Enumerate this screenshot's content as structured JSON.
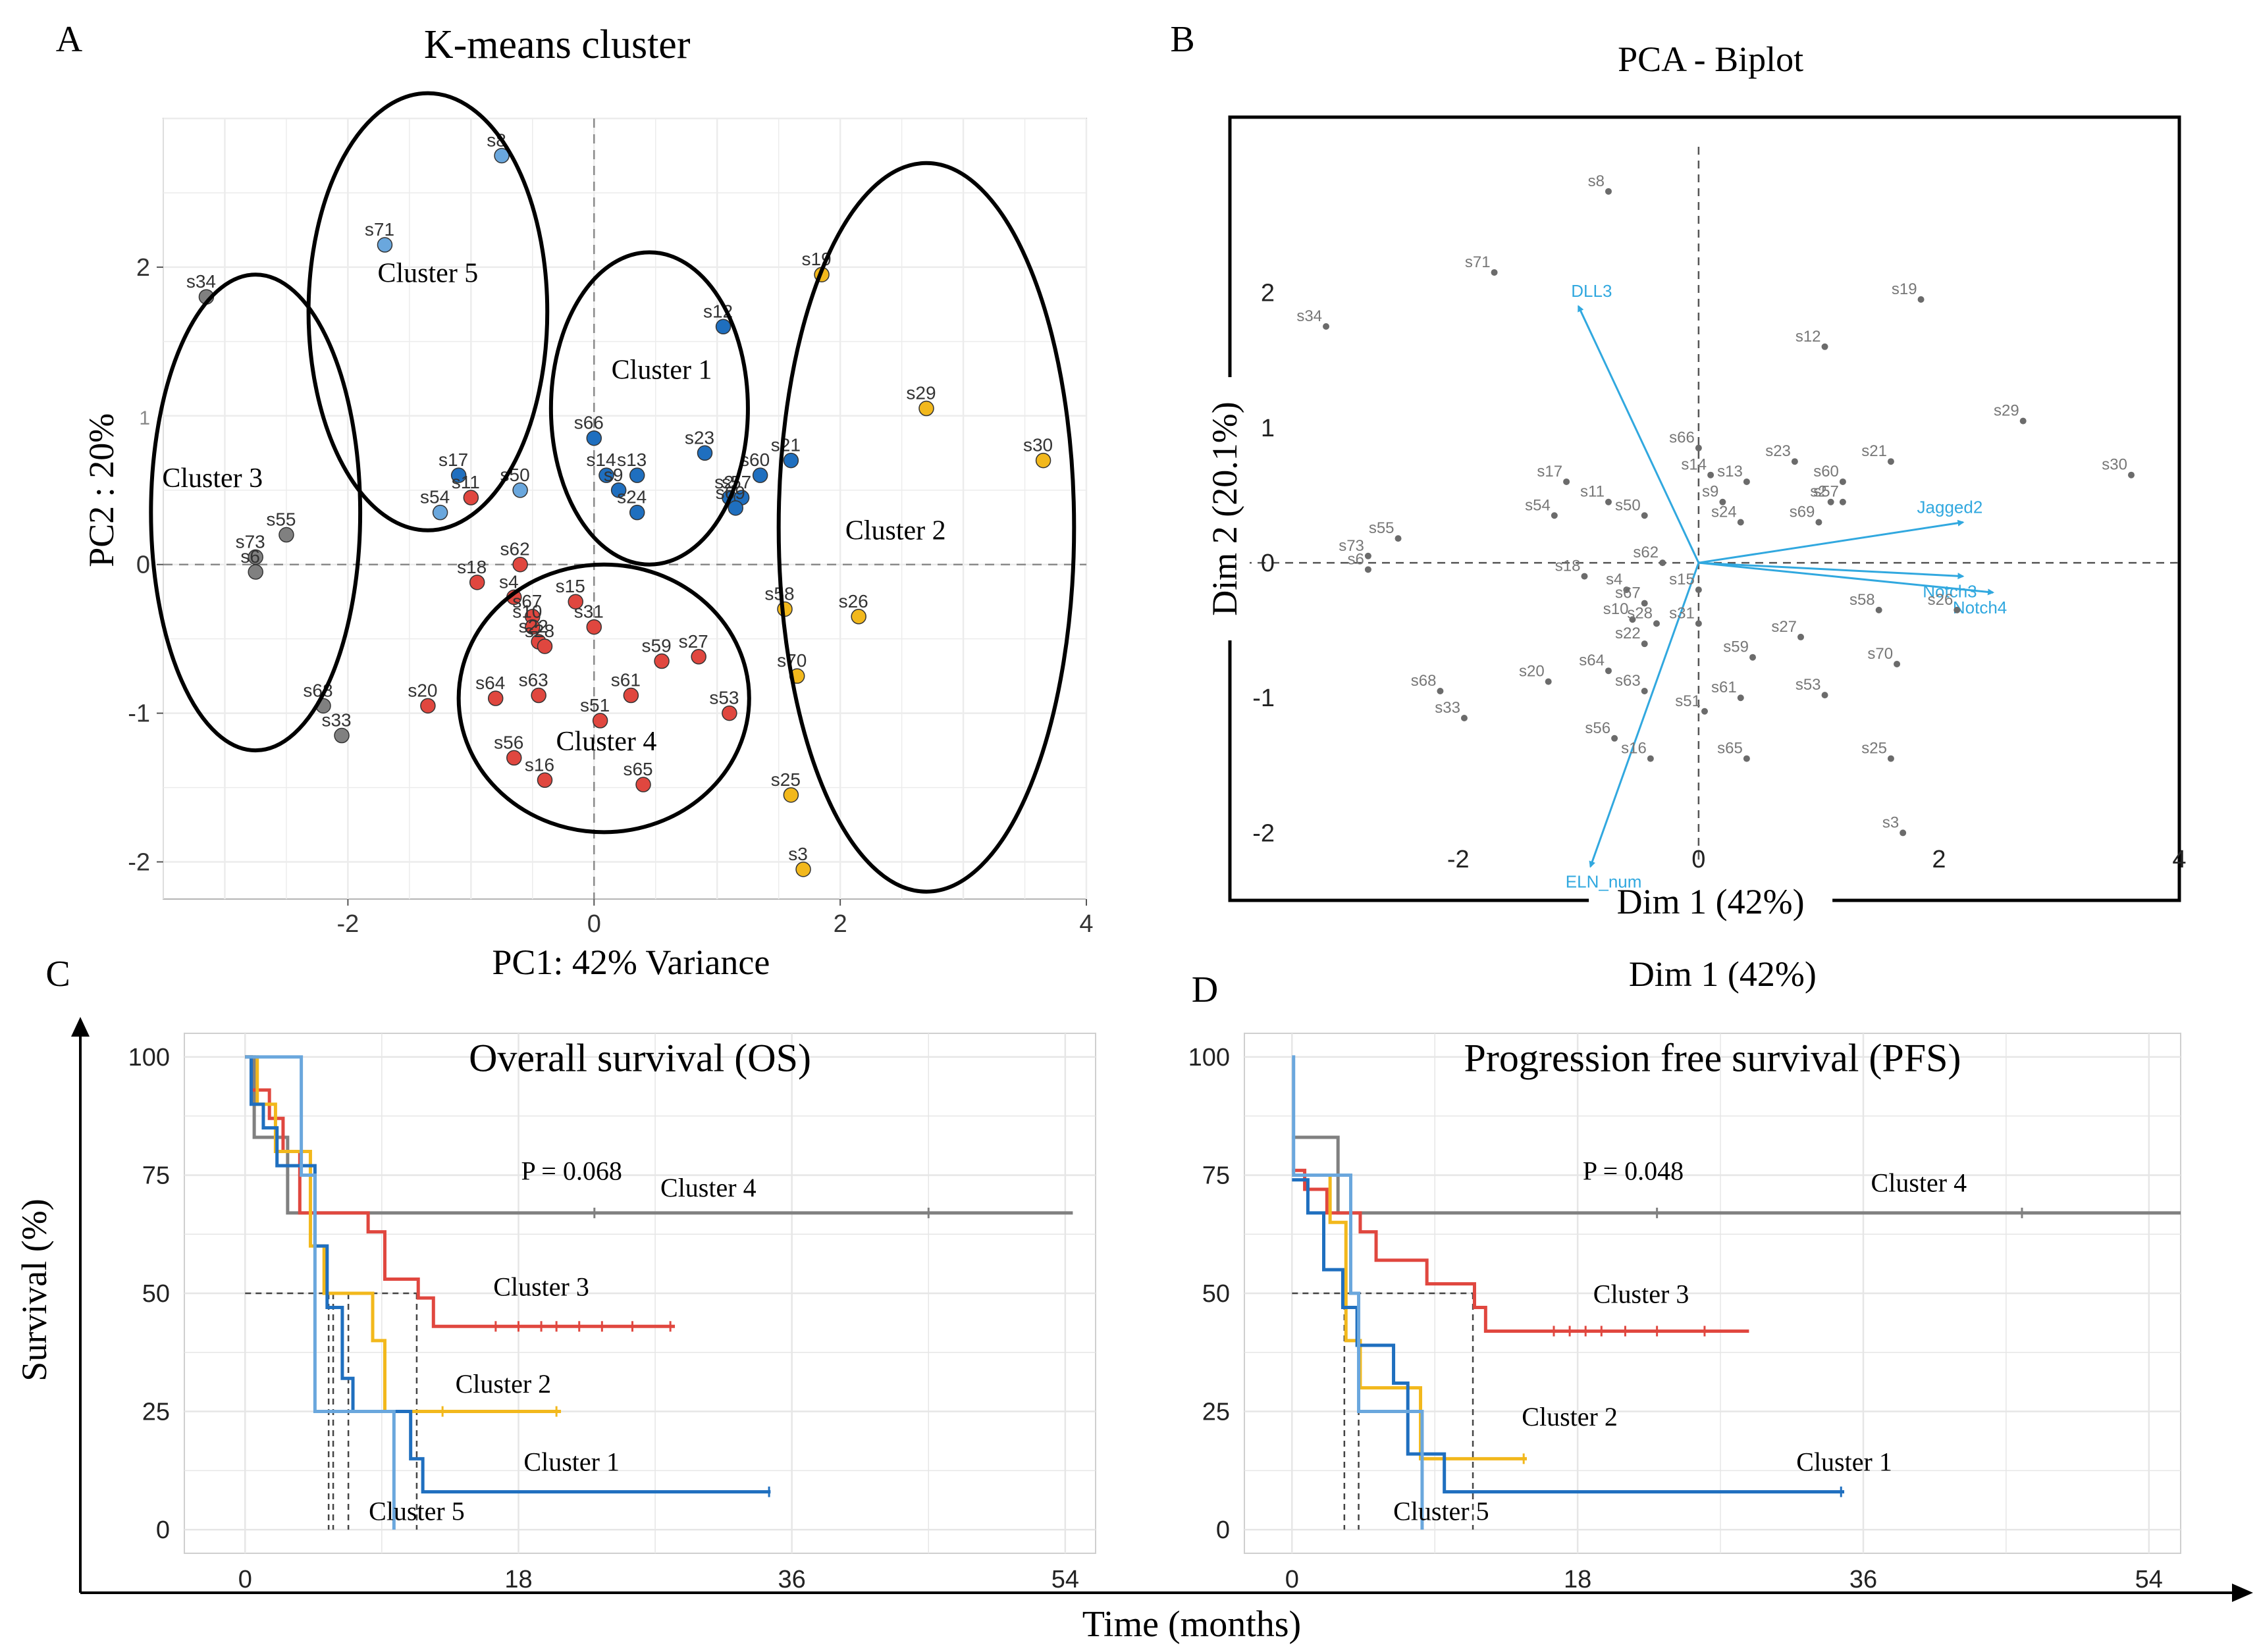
{
  "panels": {
    "a": "A",
    "b": "B",
    "c": "C",
    "d": "D"
  },
  "colors": {
    "cluster1": "#1f6fbf",
    "cluster2": "#f2b81c",
    "cluster3": "#e0473f",
    "cluster4": "#808080",
    "cluster5": "#6aa7dd",
    "arrow": "#31a8df",
    "biplot_point": "#6b6b6b"
  },
  "chart_data": [
    {
      "id": "kmeans",
      "type": "scatter",
      "title": "K-means cluster",
      "xlabel": "PC1: 42% Variance",
      "ylabel": "PC2 : 20%",
      "xlim": [
        -3.5,
        4
      ],
      "ylim": [
        -2.25,
        3.0
      ],
      "xticks": [
        -2,
        0,
        2,
        4
      ],
      "yticks": [
        -2,
        -1,
        0,
        2
      ],
      "ytick_extra": "1",
      "grid": true,
      "cluster_labels": [
        {
          "text": "Cluster 1",
          "x": 0.55,
          "y": 1.25
        },
        {
          "text": "Cluster 2",
          "x": 2.45,
          "y": 0.17
        },
        {
          "text": "Cluster 3",
          "x": -3.1,
          "y": 0.52
        },
        {
          "text": "Cluster 4",
          "x": 0.1,
          "y": -1.25
        },
        {
          "text": "Cluster 5",
          "x": -1.35,
          "y": 1.9
        }
      ],
      "ellipses": [
        {
          "cx": 0.45,
          "cy": 1.05,
          "rx": 0.8,
          "ry": 1.05
        },
        {
          "cx": 2.7,
          "cy": 0.25,
          "rx": 1.2,
          "ry": 2.45
        },
        {
          "cx": -2.75,
          "cy": 0.35,
          "rx": 0.85,
          "ry": 1.6
        },
        {
          "cx": 0.08,
          "cy": -0.9,
          "rx": 1.18,
          "ry": 0.9
        },
        {
          "cx": -1.35,
          "cy": 1.7,
          "rx": 0.97,
          "ry": 1.47
        }
      ],
      "points": [
        {
          "label": "s8",
          "x": -0.75,
          "y": 2.75,
          "cluster": 5
        },
        {
          "label": "s71",
          "x": -1.7,
          "y": 2.15,
          "cluster": 5
        },
        {
          "label": "s50",
          "x": -0.6,
          "y": 0.5,
          "cluster": 5
        },
        {
          "label": "s54",
          "x": -1.25,
          "y": 0.35,
          "cluster": 5
        },
        {
          "label": "s12",
          "x": 1.05,
          "y": 1.6,
          "cluster": 1
        },
        {
          "label": "s66",
          "x": 0.0,
          "y": 0.85,
          "cluster": 1
        },
        {
          "label": "s23",
          "x": 0.9,
          "y": 0.75,
          "cluster": 1
        },
        {
          "label": "s13",
          "x": 0.35,
          "y": 0.6,
          "cluster": 1
        },
        {
          "label": "s14",
          "x": 0.1,
          "y": 0.6,
          "cluster": 1
        },
        {
          "label": "s60",
          "x": 1.35,
          "y": 0.6,
          "cluster": 1
        },
        {
          "label": "s21",
          "x": 1.6,
          "y": 0.7,
          "cluster": 1
        },
        {
          "label": "s17",
          "x": -1.1,
          "y": 0.6,
          "cluster": 1
        },
        {
          "label": "s9",
          "x": 0.2,
          "y": 0.5,
          "cluster": 1
        },
        {
          "label": "s2",
          "x": 1.1,
          "y": 0.45,
          "cluster": 1
        },
        {
          "label": "s57",
          "x": 1.2,
          "y": 0.45,
          "cluster": 1
        },
        {
          "label": "s24",
          "x": 0.35,
          "y": 0.35,
          "cluster": 1
        },
        {
          "label": "s69",
          "x": 1.15,
          "y": 0.38,
          "cluster": 1
        },
        {
          "label": "s19",
          "x": 1.85,
          "y": 1.95,
          "cluster": 2
        },
        {
          "label": "s29",
          "x": 2.7,
          "y": 1.05,
          "cluster": 2
        },
        {
          "label": "s30",
          "x": 3.65,
          "y": 0.7,
          "cluster": 2
        },
        {
          "label": "s58",
          "x": 1.55,
          "y": -0.3,
          "cluster": 2
        },
        {
          "label": "s26",
          "x": 2.15,
          "y": -0.35,
          "cluster": 2
        },
        {
          "label": "s70",
          "x": 1.65,
          "y": -0.75,
          "cluster": 2
        },
        {
          "label": "s25",
          "x": 1.6,
          "y": -1.55,
          "cluster": 2
        },
        {
          "label": "s3",
          "x": 1.7,
          "y": -2.05,
          "cluster": 2
        },
        {
          "label": "s34",
          "x": -3.15,
          "y": 1.8,
          "cluster": 4
        },
        {
          "label": "s55",
          "x": -2.5,
          "y": 0.2,
          "cluster": 4
        },
        {
          "label": "s73",
          "x": -2.75,
          "y": 0.05,
          "cluster": 4
        },
        {
          "label": "s6",
          "x": -2.75,
          "y": -0.05,
          "cluster": 4
        },
        {
          "label": "s68",
          "x": -2.2,
          "y": -0.95,
          "cluster": 4
        },
        {
          "label": "s33",
          "x": -2.05,
          "y": -1.15,
          "cluster": 4
        },
        {
          "label": "s11",
          "x": -1.0,
          "y": 0.45,
          "cluster": 3
        },
        {
          "label": "s18",
          "x": -0.95,
          "y": -0.12,
          "cluster": 3
        },
        {
          "label": "s62",
          "x": -0.6,
          "y": 0.0,
          "cluster": 3
        },
        {
          "label": "s4",
          "x": -0.65,
          "y": -0.22,
          "cluster": 3
        },
        {
          "label": "s67",
          "x": -0.5,
          "y": -0.35,
          "cluster": 3
        },
        {
          "label": "s15",
          "x": -0.15,
          "y": -0.25,
          "cluster": 3
        },
        {
          "label": "s10",
          "x": -0.5,
          "y": -0.42,
          "cluster": 3
        },
        {
          "label": "s22",
          "x": -0.45,
          "y": -0.52,
          "cluster": 3
        },
        {
          "label": "s28",
          "x": -0.4,
          "y": -0.55,
          "cluster": 3
        },
        {
          "label": "s31",
          "x": 0.0,
          "y": -0.42,
          "cluster": 3
        },
        {
          "label": "s27",
          "x": 0.85,
          "y": -0.62,
          "cluster": 3
        },
        {
          "label": "s59",
          "x": 0.55,
          "y": -0.65,
          "cluster": 3
        },
        {
          "label": "s64",
          "x": -0.8,
          "y": -0.9,
          "cluster": 3
        },
        {
          "label": "s63",
          "x": -0.45,
          "y": -0.88,
          "cluster": 3
        },
        {
          "label": "s20",
          "x": -1.35,
          "y": -0.95,
          "cluster": 3
        },
        {
          "label": "s61",
          "x": 0.3,
          "y": -0.88,
          "cluster": 3
        },
        {
          "label": "s51",
          "x": 0.05,
          "y": -1.05,
          "cluster": 3
        },
        {
          "label": "s53",
          "x": 1.1,
          "y": -1.0,
          "cluster": 3
        },
        {
          "label": "s56",
          "x": -0.65,
          "y": -1.3,
          "cluster": 3
        },
        {
          "label": "s16",
          "x": -0.4,
          "y": -1.45,
          "cluster": 3
        },
        {
          "label": "s65",
          "x": 0.4,
          "y": -1.48,
          "cluster": 3
        }
      ]
    },
    {
      "id": "biplot",
      "type": "scatter",
      "title": "PCA - Biplot",
      "xlabel": "Dim 1 (42%)",
      "xlabel_below": "Dim 1 (42%)",
      "ylabel": "Dim 2 (20.1%)",
      "xlim": [
        -3.9,
        4.0
      ],
      "ylim": [
        -2.5,
        3.3
      ],
      "xticks": [
        -2,
        0,
        2,
        4
      ],
      "yticks": [
        -2,
        -1,
        0,
        1,
        2
      ],
      "grid": false,
      "arrows": [
        {
          "label": "DLL3",
          "x": -1.0,
          "y": 1.9
        },
        {
          "label": "Jagged2",
          "x": 2.2,
          "y": 0.3
        },
        {
          "label": "Notch3",
          "x": 2.2,
          "y": -0.1
        },
        {
          "label": "Notch4",
          "x": 2.45,
          "y": -0.22
        },
        {
          "label": "ELN_num",
          "x": -0.9,
          "y": -2.25
        }
      ],
      "points": [
        {
          "label": "s8",
          "x": -0.75,
          "y": 2.75
        },
        {
          "label": "s71",
          "x": -1.7,
          "y": 2.15
        },
        {
          "label": "s34",
          "x": -3.1,
          "y": 1.75
        },
        {
          "label": "s19",
          "x": 1.85,
          "y": 1.95
        },
        {
          "label": "s12",
          "x": 1.05,
          "y": 1.6
        },
        {
          "label": "s29",
          "x": 2.7,
          "y": 1.05
        },
        {
          "label": "s30",
          "x": 3.6,
          "y": 0.65
        },
        {
          "label": "s66",
          "x": 0.0,
          "y": 0.85
        },
        {
          "label": "s23",
          "x": 0.8,
          "y": 0.75
        },
        {
          "label": "s21",
          "x": 1.6,
          "y": 0.75
        },
        {
          "label": "s14",
          "x": 0.1,
          "y": 0.65
        },
        {
          "label": "s13",
          "x": 0.4,
          "y": 0.6
        },
        {
          "label": "s60",
          "x": 1.2,
          "y": 0.6
        },
        {
          "label": "s17",
          "x": -1.1,
          "y": 0.6
        },
        {
          "label": "s9",
          "x": 0.2,
          "y": 0.45
        },
        {
          "label": "s2",
          "x": 1.1,
          "y": 0.45
        },
        {
          "label": "s57",
          "x": 1.2,
          "y": 0.45
        },
        {
          "label": "s11",
          "x": -0.75,
          "y": 0.45
        },
        {
          "label": "s50",
          "x": -0.45,
          "y": 0.35
        },
        {
          "label": "s54",
          "x": -1.2,
          "y": 0.35
        },
        {
          "label": "s24",
          "x": 0.35,
          "y": 0.3
        },
        {
          "label": "s69",
          "x": 1.0,
          "y": 0.3
        },
        {
          "label": "s55",
          "x": -2.5,
          "y": 0.18
        },
        {
          "label": "s73",
          "x": -2.75,
          "y": 0.05
        },
        {
          "label": "s6",
          "x": -2.75,
          "y": -0.05
        },
        {
          "label": "s62",
          "x": -0.3,
          "y": 0.0
        },
        {
          "label": "s18",
          "x": -0.95,
          "y": -0.1
        },
        {
          "label": "s4",
          "x": -0.6,
          "y": -0.2
        },
        {
          "label": "s15",
          "x": 0.0,
          "y": -0.2
        },
        {
          "label": "s67",
          "x": -0.45,
          "y": -0.3
        },
        {
          "label": "s10",
          "x": -0.55,
          "y": -0.42
        },
        {
          "label": "s28",
          "x": -0.35,
          "y": -0.45
        },
        {
          "label": "s31",
          "x": 0.0,
          "y": -0.45
        },
        {
          "label": "s58",
          "x": 1.5,
          "y": -0.35
        },
        {
          "label": "s26",
          "x": 2.15,
          "y": -0.35
        },
        {
          "label": "s27",
          "x": 0.85,
          "y": -0.55
        },
        {
          "label": "s22",
          "x": -0.45,
          "y": -0.6
        },
        {
          "label": "s59",
          "x": 0.45,
          "y": -0.7
        },
        {
          "label": "s70",
          "x": 1.65,
          "y": -0.75
        },
        {
          "label": "s64",
          "x": -0.75,
          "y": -0.8
        },
        {
          "label": "s20",
          "x": -1.25,
          "y": -0.88
        },
        {
          "label": "s63",
          "x": -0.45,
          "y": -0.95
        },
        {
          "label": "s53",
          "x": 1.05,
          "y": -0.98
        },
        {
          "label": "s61",
          "x": 0.35,
          "y": -1.0
        },
        {
          "label": "s68",
          "x": -2.15,
          "y": -0.95
        },
        {
          "label": "s33",
          "x": -1.95,
          "y": -1.15
        },
        {
          "label": "s51",
          "x": 0.05,
          "y": -1.1
        },
        {
          "label": "s56",
          "x": -0.7,
          "y": -1.3
        },
        {
          "label": "s16",
          "x": -0.4,
          "y": -1.45
        },
        {
          "label": "s65",
          "x": 0.4,
          "y": -1.45
        },
        {
          "label": "s25",
          "x": 1.6,
          "y": -1.45
        },
        {
          "label": "s3",
          "x": 1.7,
          "y": -2.0
        }
      ]
    },
    {
      "id": "os",
      "type": "line",
      "step": true,
      "title": "Overall survival (OS)",
      "xlabel": "Time (months)",
      "ylabel": "Survival (%)",
      "pvalue": "P = 0.068",
      "xlim": [
        -4,
        56
      ],
      "ylim": [
        -5,
        105
      ],
      "xticks": [
        0,
        18,
        36,
        54
      ],
      "yticks": [
        0,
        25,
        50,
        75,
        100
      ],
      "grid": true,
      "median_lines": [
        5.5,
        5.8,
        6.8,
        11.3
      ],
      "series": [
        {
          "name": "Cluster 4",
          "color": "#808080",
          "label_at": [
            30.5,
            70.5
          ],
          "x": [
            0,
            0.6,
            2.8,
            54.5
          ],
          "y": [
            100,
            83,
            67,
            67
          ],
          "censor_x": [
            23,
            45
          ]
        },
        {
          "name": "Cluster 3",
          "color": "#e0473f",
          "label_at": [
            19.5,
            49.5
          ],
          "x": [
            0,
            0.4,
            1.6,
            2.5,
            3.6,
            8.1,
            9.2,
            11.4,
            12.4,
            28.3
          ],
          "y": [
            100,
            93,
            87,
            80,
            67,
            63,
            53,
            49,
            43,
            43
          ],
          "censor_x": [
            16.5,
            18,
            19.5,
            20.5,
            22,
            23.5,
            25.5,
            28
          ]
        },
        {
          "name": "Cluster 2",
          "color": "#f2b81c",
          "label_at": [
            17,
            29
          ],
          "x": [
            0,
            0.8,
            2.0,
            4.3,
            5.2,
            8.4,
            9.2,
            20.8
          ],
          "y": [
            100,
            90,
            80,
            60,
            50,
            40,
            25,
            25
          ],
          "censor_x": [
            13,
            20.5
          ]
        },
        {
          "name": "Cluster 1",
          "color": "#1f6fbf",
          "label_at": [
            21.5,
            12.5
          ],
          "x": [
            0,
            0.4,
            1.2,
            2.1,
            4.6,
            5.4,
            6.4,
            7.1,
            10.9,
            11.7,
            34.6
          ],
          "y": [
            100,
            90,
            85,
            77,
            60,
            47,
            32,
            25,
            15,
            8,
            8
          ],
          "censor_x": [
            34.5
          ]
        },
        {
          "name": "Cluster 5",
          "color": "#6aa7dd",
          "label_at": [
            11.3,
            2
          ],
          "x": [
            0,
            3.7,
            4.6,
            8.8,
            9.8
          ],
          "y": [
            100,
            75,
            25,
            25,
            0
          ],
          "censor_x": []
        }
      ]
    },
    {
      "id": "pfs",
      "type": "line",
      "step": true,
      "title": "Progression free survival (PFS)",
      "xlabel": "Time (months)",
      "ylabel": "Survival (%)",
      "pvalue": "P = 0.048",
      "xlim": [
        -3,
        56
      ],
      "ylim": [
        -5,
        105
      ],
      "xticks": [
        0,
        18,
        36,
        54
      ],
      "yticks": [
        0,
        25,
        50,
        75,
        100
      ],
      "grid": true,
      "median_lines": [
        3.3,
        4.2,
        11.4
      ],
      "series": [
        {
          "name": "Cluster 4",
          "color": "#808080",
          "label_at": [
            39.5,
            71.5
          ],
          "x": [
            0,
            2.9,
            56
          ],
          "y": [
            83,
            67,
            67
          ],
          "censor_x": [
            23,
            46
          ]
        },
        {
          "name": "Cluster 3",
          "color": "#e0473f",
          "label_at": [
            22,
            48
          ],
          "x": [
            0,
            0.8,
            2.2,
            4.3,
            5.3,
            8.5,
            11.5,
            12.2,
            28.8
          ],
          "y": [
            76,
            72,
            67,
            63,
            57,
            52,
            47,
            42,
            42
          ],
          "censor_x": [
            16.5,
            17.5,
            18.5,
            19.5,
            21,
            23,
            26
          ]
        },
        {
          "name": "Cluster 2",
          "color": "#f2b81c",
          "label_at": [
            17.5,
            22
          ],
          "x": [
            0,
            2.4,
            3.4,
            4.3,
            5.2,
            8.1,
            14.8
          ],
          "y": [
            75,
            65,
            40,
            30,
            30,
            15,
            15
          ],
          "censor_x": [
            14.6
          ]
        },
        {
          "name": "Cluster 1",
          "color": "#1f6fbf",
          "label_at": [
            34.8,
            12.5
          ],
          "x": [
            0,
            1.0,
            2.0,
            3.2,
            4.1,
            5.4,
            6.4,
            7.3,
            9.6,
            34.8
          ],
          "y": [
            74,
            67,
            55,
            47,
            39,
            39,
            31,
            16,
            8,
            8
          ],
          "censor_x": [
            34.6
          ]
        },
        {
          "name": "Cluster 5",
          "color": "#6aa7dd",
          "label_at": [
            9.4,
            2
          ],
          "x": [
            0,
            0.1,
            1.4,
            3.7,
            4.2,
            7.6,
            8.2
          ],
          "y": [
            100,
            75,
            75,
            50,
            25,
            25,
            0
          ],
          "censor_x": []
        }
      ]
    }
  ]
}
